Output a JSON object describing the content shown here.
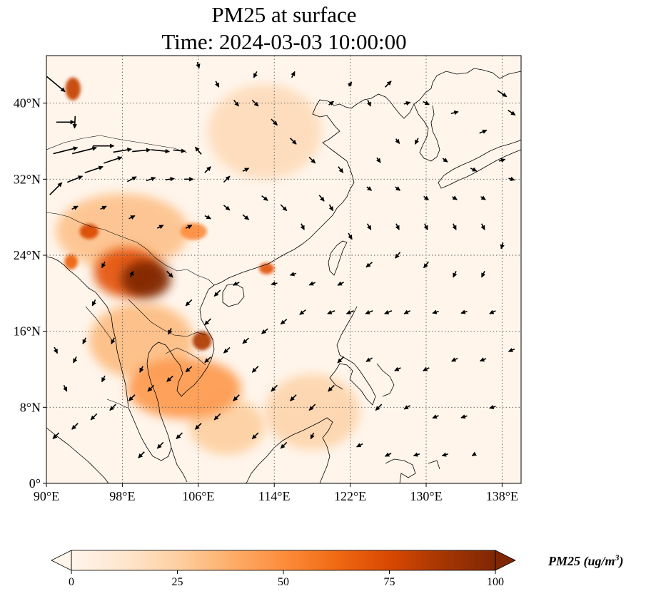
{
  "title": {
    "line1": "PM25 at surface",
    "line2": "Time: 2024-03-03 10:00:00"
  },
  "map": {
    "lon_range": [
      90,
      140
    ],
    "lat_range": [
      0,
      45
    ],
    "lon_ticks": [
      {
        "value": 90,
        "label": "90°E"
      },
      {
        "value": 98,
        "label": "98°E"
      },
      {
        "value": 106,
        "label": "106°E"
      },
      {
        "value": 114,
        "label": "114°E"
      },
      {
        "value": 122,
        "label": "122°E"
      },
      {
        "value": 130,
        "label": "130°E"
      },
      {
        "value": 138,
        "label": "138°E"
      }
    ],
    "lat_ticks": [
      {
        "value": 0,
        "label": "0°"
      },
      {
        "value": 8,
        "label": "8°N"
      },
      {
        "value": 16,
        "label": "16°N"
      },
      {
        "value": 24,
        "label": "24°N"
      },
      {
        "value": 32,
        "label": "32°N"
      },
      {
        "value": 40,
        "label": "40°N"
      }
    ],
    "gridlines": true,
    "coastline_color": "#000000",
    "hotspots": [
      {
        "lon": 100.5,
        "lat": 21.5,
        "value": 100,
        "rlon": 2.6,
        "rlat": 2.0
      },
      {
        "lon": 98.5,
        "lat": 22.2,
        "value": 70,
        "rlon": 3.5,
        "rlat": 2.6
      },
      {
        "lon": 106.4,
        "lat": 15.0,
        "value": 85,
        "rlon": 1.0,
        "rlat": 1.0
      },
      {
        "lon": 92.8,
        "lat": 41.5,
        "value": 80,
        "rlon": 0.8,
        "rlat": 1.2
      },
      {
        "lon": 94.5,
        "lat": 26.5,
        "value": 75,
        "rlon": 1.0,
        "rlat": 0.8
      },
      {
        "lon": 92.6,
        "lat": 23.3,
        "value": 65,
        "rlon": 0.7,
        "rlat": 0.8
      },
      {
        "lon": 113.2,
        "lat": 22.6,
        "value": 70,
        "rlon": 0.8,
        "rlat": 0.6
      },
      {
        "lon": 105.5,
        "lat": 26.5,
        "value": 50,
        "rlon": 1.4,
        "rlat": 0.9
      },
      {
        "lon": 104.5,
        "lat": 10.0,
        "value": 45,
        "rlon": 6.0,
        "rlat": 3.2
      },
      {
        "lon": 100.0,
        "lat": 15.0,
        "value": 32,
        "rlon": 5.5,
        "rlat": 4.0
      },
      {
        "lon": 98.0,
        "lat": 26.5,
        "value": 30,
        "rlon": 7.0,
        "rlat": 4.0
      },
      {
        "lon": 113.0,
        "lat": 37.0,
        "value": 18,
        "rlon": 6.0,
        "rlat": 5.0
      },
      {
        "lon": 118.0,
        "lat": 7.5,
        "value": 22,
        "rlon": 5.0,
        "rlat": 4.0
      },
      {
        "lon": 109.0,
        "lat": 6.0,
        "value": 25,
        "rlon": 4.0,
        "rlat": 3.0
      }
    ],
    "wind_vectors": [
      [
        91,
        42,
        3,
        -2.5
      ],
      [
        92,
        38,
        3,
        0
      ],
      [
        93,
        38,
        -0.1,
        -2
      ],
      [
        92,
        35,
        4,
        1
      ],
      [
        94,
        35,
        4,
        1
      ],
      [
        96,
        35.5,
        3.5,
        0
      ],
      [
        98,
        35,
        3,
        0.5
      ],
      [
        100,
        35,
        3,
        0.3
      ],
      [
        102,
        35,
        3,
        -0.3
      ],
      [
        104,
        35,
        2,
        -0.2
      ],
      [
        106,
        35,
        -1,
        1.2
      ],
      [
        91,
        31,
        2,
        2
      ],
      [
        93,
        32,
        2.5,
        1
      ],
      [
        95,
        33,
        3,
        1
      ],
      [
        97,
        34,
        3,
        1
      ],
      [
        99,
        32,
        1.5,
        0.8
      ],
      [
        101,
        32,
        1.5,
        0.5
      ],
      [
        103,
        32,
        1.5,
        0.2
      ],
      [
        105,
        32,
        1.5,
        0
      ],
      [
        107,
        33,
        1,
        1
      ],
      [
        109,
        32,
        1,
        1
      ],
      [
        111,
        33,
        1,
        0.5
      ],
      [
        93,
        29,
        1,
        0.5
      ],
      [
        96,
        29,
        1,
        0.5
      ],
      [
        99,
        28,
        1,
        0.5
      ],
      [
        102,
        27,
        1,
        0.5
      ],
      [
        105,
        27,
        1,
        0.5
      ],
      [
        107,
        28,
        1,
        -0.5
      ],
      [
        109,
        29,
        1,
        -0.8
      ],
      [
        111,
        28,
        1,
        -0.8
      ],
      [
        113,
        30,
        1,
        -0.8
      ],
      [
        115,
        29,
        1,
        -1
      ],
      [
        117,
        27,
        0.5,
        -1
      ],
      [
        119,
        30,
        0.8,
        -1
      ],
      [
        121,
        33,
        0.8,
        -1
      ],
      [
        118,
        34,
        1,
        -1
      ],
      [
        116,
        36,
        1,
        -1
      ],
      [
        114,
        38,
        1,
        -1
      ],
      [
        112,
        40,
        1,
        -1
      ],
      [
        110,
        40,
        0.8,
        -1
      ],
      [
        108,
        42,
        0.5,
        -1
      ],
      [
        106,
        44,
        0.3,
        -1
      ],
      [
        112,
        43,
        -0.5,
        -1
      ],
      [
        116,
        43,
        0.5,
        1
      ],
      [
        120,
        40,
        0.8,
        0.6
      ],
      [
        122,
        42,
        0.5,
        0.7
      ],
      [
        124,
        40,
        0.5,
        -1
      ],
      [
        126,
        42,
        1,
        1
      ],
      [
        128,
        40,
        1,
        0.3
      ],
      [
        130,
        40,
        1,
        -0.5
      ],
      [
        133,
        39,
        1.2,
        0.3
      ],
      [
        136,
        37,
        1.2,
        0.5
      ],
      [
        138,
        41,
        1.5,
        -1
      ],
      [
        139,
        39,
        1.2,
        -0.8
      ],
      [
        138,
        34,
        1,
        0.3
      ],
      [
        135,
        33,
        1,
        -0.5
      ],
      [
        132,
        34,
        0.8,
        -0.6
      ],
      [
        129,
        36,
        -0.5,
        -1
      ],
      [
        127,
        36,
        0.6,
        -0.8
      ],
      [
        125,
        34,
        0.6,
        -0.8
      ],
      [
        124,
        31,
        0.8,
        -0.6
      ],
      [
        127,
        31,
        0.8,
        -0.6
      ],
      [
        130,
        30,
        0.8,
        -0.6
      ],
      [
        133,
        30,
        0.8,
        -0.5
      ],
      [
        136,
        30,
        0.8,
        -0.5
      ],
      [
        139,
        32,
        1,
        -0.3
      ],
      [
        120,
        29,
        0.6,
        -1
      ],
      [
        122,
        26,
        0.6,
        -1
      ],
      [
        124,
        27,
        0.6,
        -1
      ],
      [
        127,
        27,
        0.5,
        -1
      ],
      [
        130,
        27,
        0.5,
        -1
      ],
      [
        133,
        27,
        0.5,
        -1
      ],
      [
        136,
        27,
        0.5,
        -1
      ],
      [
        138,
        25,
        -0.3,
        -1
      ],
      [
        136,
        22,
        -0.5,
        -1
      ],
      [
        133,
        22,
        -0.5,
        -1
      ],
      [
        130,
        23,
        -0.8,
        -1
      ],
      [
        127,
        24,
        -0.8,
        -1
      ],
      [
        124,
        23,
        -1,
        -0.8
      ],
      [
        121,
        21,
        -1,
        -0.5
      ],
      [
        118,
        21,
        -1,
        -0.4
      ],
      [
        116,
        22,
        -1,
        -0.3
      ],
      [
        114,
        21,
        -1,
        -0.2
      ],
      [
        120,
        18,
        -1.2,
        -0.5
      ],
      [
        122,
        18,
        -1.2,
        -0.5
      ],
      [
        124,
        18,
        -1.2,
        -0.5
      ],
      [
        126,
        18,
        -1.2,
        -0.5
      ],
      [
        128,
        18,
        -1,
        -0.5
      ],
      [
        131,
        18,
        -1,
        -0.3
      ],
      [
        134,
        18,
        -1,
        -0.3
      ],
      [
        137,
        18,
        -1,
        -0.5
      ],
      [
        117,
        18,
        -1,
        -0.8
      ],
      [
        115,
        17,
        -1,
        -0.8
      ],
      [
        113,
        16,
        -1,
        -0.8
      ],
      [
        111,
        15,
        -1,
        -0.9
      ],
      [
        109,
        14,
        -1,
        -0.9
      ],
      [
        107,
        13,
        -1,
        -0.9
      ],
      [
        105,
        12,
        -1,
        -0.9
      ],
      [
        103,
        11,
        -1,
        -0.9
      ],
      [
        101,
        10,
        -1,
        -1
      ],
      [
        99,
        9,
        -1,
        -1
      ],
      [
        97,
        8,
        -1,
        -1
      ],
      [
        95,
        7,
        -1,
        -1
      ],
      [
        93,
        6,
        -1,
        -1
      ],
      [
        91,
        5,
        -1,
        -1
      ],
      [
        112,
        12,
        -1,
        -1
      ],
      [
        114,
        10,
        -1,
        -1
      ],
      [
        116,
        9,
        -1,
        -1
      ],
      [
        118,
        8,
        -1,
        -1
      ],
      [
        120,
        10,
        -1,
        -1
      ],
      [
        110,
        9,
        -1,
        -1
      ],
      [
        108,
        7,
        -1,
        -1
      ],
      [
        106,
        6,
        -1,
        -1
      ],
      [
        104,
        5,
        -1,
        -1
      ],
      [
        102,
        4,
        -1,
        -1
      ],
      [
        100,
        3,
        -1,
        -1
      ],
      [
        112,
        5,
        -1,
        -1
      ],
      [
        115,
        4,
        -1,
        -1
      ],
      [
        118,
        5,
        -0.5,
        -1
      ],
      [
        121,
        13,
        -1,
        -1
      ],
      [
        124,
        13,
        -1,
        -0.6
      ],
      [
        127,
        12,
        -1,
        -0.5
      ],
      [
        130,
        12,
        -1,
        -0.5
      ],
      [
        133,
        13,
        -1,
        -0.5
      ],
      [
        136,
        13,
        -1,
        -0.4
      ],
      [
        139,
        14,
        -1,
        -0.4
      ],
      [
        125,
        8,
        -1,
        -1
      ],
      [
        128,
        8,
        -1,
        -0.6
      ],
      [
        131,
        7,
        -1,
        -0.4
      ],
      [
        134,
        7,
        -1,
        -0.3
      ],
      [
        137,
        8,
        -1,
        -0.3
      ],
      [
        123,
        4,
        -1,
        -0.5
      ],
      [
        126,
        3,
        -1,
        -0.5
      ],
      [
        129,
        3,
        -1,
        -0.3
      ],
      [
        132,
        3,
        -1,
        -0.3
      ],
      [
        135,
        3,
        -0.5,
        -0.3
      ],
      [
        96,
        23,
        -0.5,
        -1
      ],
      [
        99,
        22,
        0.5,
        1
      ],
      [
        103,
        22,
        1,
        -1
      ],
      [
        105,
        19,
        -1,
        -1
      ],
      [
        108,
        20,
        -1,
        -1
      ],
      [
        110,
        21,
        -1,
        -0.5
      ],
      [
        95,
        19,
        -0.5,
        -1
      ],
      [
        94,
        15,
        -0.5,
        -1
      ],
      [
        97,
        15,
        -0.5,
        -1
      ],
      [
        100,
        12,
        -0.5,
        -1
      ],
      [
        92,
        10,
        0.5,
        -1
      ],
      [
        91,
        14,
        0.5,
        -1
      ],
      [
        103,
        16,
        -0.5,
        -1
      ],
      [
        107,
        17,
        -1,
        -1
      ],
      [
        96,
        11,
        -0.5,
        -1
      ],
      [
        93,
        13,
        -0.5,
        -1
      ]
    ]
  },
  "colorbar": {
    "min": 0,
    "max": 100,
    "ticks": [
      "0",
      "25",
      "50",
      "75",
      "100"
    ],
    "label_main": "PM25 (ug/m",
    "label_exp": "3",
    "label_close": ")",
    "colors": [
      "#fff5eb",
      "#fee6ce",
      "#fdd0a2",
      "#fdae6b",
      "#fd8d3c",
      "#f16913",
      "#d94801",
      "#a63603",
      "#7f2704"
    ]
  }
}
